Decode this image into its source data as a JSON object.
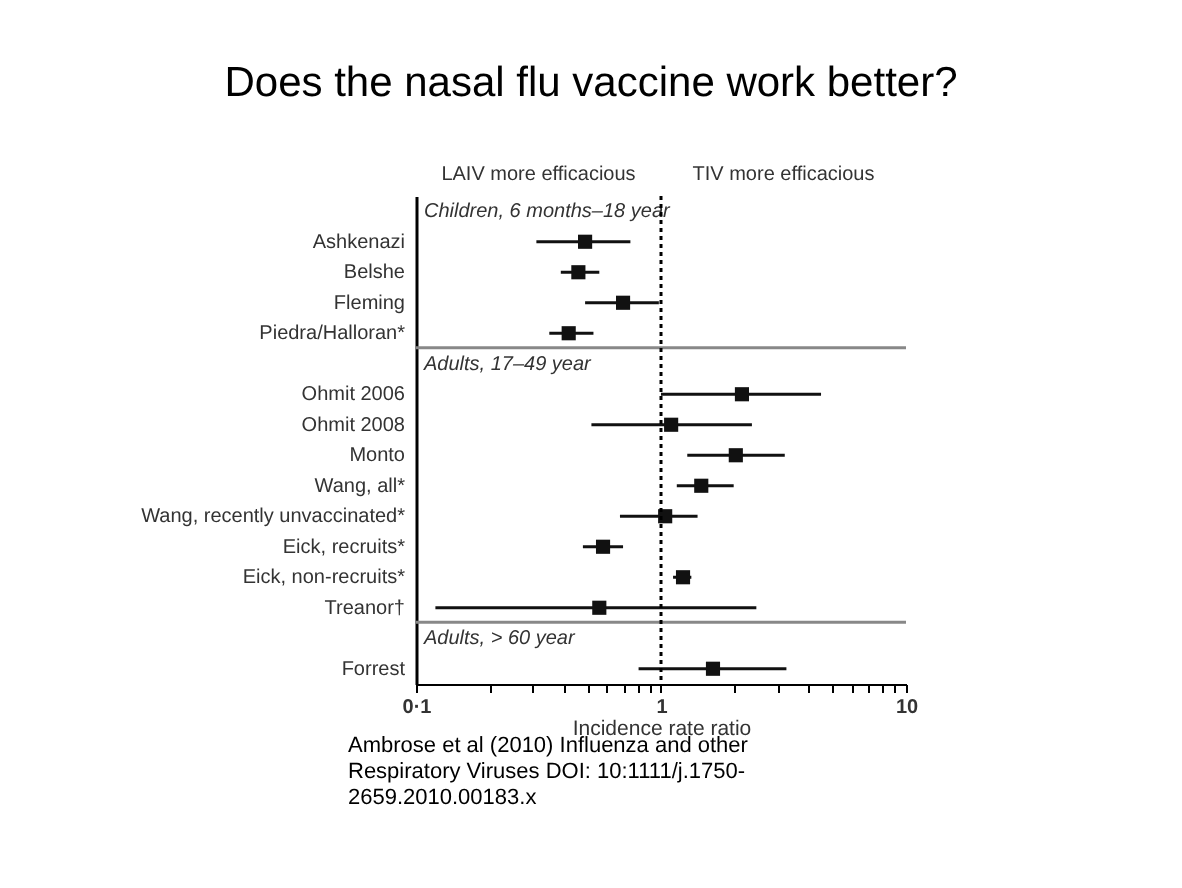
{
  "chart_data": {
    "type": "scatter",
    "title": "Does the nasal flu vaccine work better?",
    "xlabel": "Incidence rate ratio",
    "orientation": "horizontal",
    "categories": [
      null,
      "Ashkenazi",
      "Belshe",
      "Fleming",
      "Piedra/Halloran*",
      null,
      "Ohmit 2006",
      "Ohmit 2008",
      "Monto",
      "Wang, all*",
      "Wang, recently unvaccinated*",
      "Eick, recruits*",
      "Eick, non-recruits*",
      "Treanor†",
      null,
      "Forrest"
    ],
    "values": [
      null,
      0.49,
      0.46,
      0.7,
      0.42,
      null,
      2.14,
      1.1,
      2.02,
      1.46,
      1.04,
      0.58,
      1.23,
      0.56,
      null,
      1.63
    ],
    "errors": [
      null,
      [
        0.31,
        0.75
      ],
      [
        0.39,
        0.56
      ],
      [
        0.49,
        0.98
      ],
      [
        0.35,
        0.53
      ],
      null,
      [
        1.0,
        4.5
      ],
      [
        0.52,
        2.35
      ],
      [
        1.28,
        3.2
      ],
      [
        1.16,
        1.98
      ],
      [
        0.68,
        1.41
      ],
      [
        0.48,
        0.7
      ],
      [
        1.12,
        1.33
      ],
      [
        0.12,
        2.45
      ],
      null,
      [
        0.81,
        3.25
      ]
    ],
    "color": "#111111",
    "marker": "square",
    "log": "x",
    "xlim": [
      0.1,
      10
    ],
    "xticks": [
      {
        "value": 0.1,
        "label": "0·1"
      },
      {
        "value": 0.2,
        "label": null
      },
      {
        "value": 0.3,
        "label": null
      },
      {
        "value": 0.4,
        "label": null
      },
      {
        "value": 0.5,
        "label": null
      },
      {
        "value": 0.6,
        "label": null
      },
      {
        "value": 0.7,
        "label": null
      },
      {
        "value": 0.8,
        "label": null
      },
      {
        "value": 0.9,
        "label": null
      },
      1,
      {
        "value": 2,
        "label": null
      },
      {
        "value": 3,
        "label": null
      },
      {
        "value": 4,
        "label": null
      },
      {
        "value": 5,
        "label": null
      },
      {
        "value": 6,
        "label": null
      },
      {
        "value": 7,
        "label": null
      },
      {
        "value": 8,
        "label": null
      },
      {
        "value": 9,
        "label": null
      },
      10
    ],
    "ref_lines": [
      {
        "axis": "x",
        "value": 1,
        "line_style": "dotted"
      }
    ],
    "annotations": [
      "LAIV more efficacious",
      "TIV more efficacious",
      "Children, 6 months–18 year",
      "Adults, 17–49 year",
      "Adults, > 60 year",
      "Ambrose et al (2010) Influenza and other Respiratory Viruses DOI: 10:1111/j.1750-2659.2010.00183.x"
    ]
  }
}
